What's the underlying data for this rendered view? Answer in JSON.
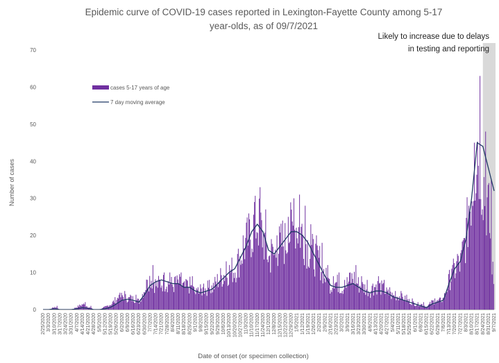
{
  "chart_data": {
    "type": "bar",
    "title_line1": "Epidemic curve of COVID-19 cases reported in Lexington-Fayette County among 5-17",
    "title_line2": "year-olds, as of 09/7/2021",
    "xlabel": "Date of onset (or specimen collection)",
    "ylabel": "Number of cases",
    "ylim": [
      0,
      70
    ],
    "yticks": [
      0,
      10,
      20,
      30,
      40,
      50,
      60,
      70
    ],
    "x_tick_labels": [
      "2/25/2020",
      "3/3/2020",
      "3/10/2020",
      "3/17/2020",
      "3/24/2020",
      "3/31/2020",
      "4/7/2020",
      "4/14/2020",
      "4/21/2020",
      "4/28/2020",
      "5/5/2020",
      "5/12/2020",
      "5/19/2020",
      "5/26/2020",
      "6/2/2020",
      "6/9/2020",
      "6/16/2020",
      "6/23/2020",
      "6/30/2020",
      "7/7/2020",
      "7/14/2020",
      "7/21/2020",
      "7/28/2020",
      "8/4/2020",
      "8/11/2020",
      "8/18/2020",
      "8/25/2020",
      "9/1/2020",
      "9/8/2020",
      "9/15/2020",
      "9/22/2020",
      "9/29/2020",
      "10/6/2020",
      "10/13/2020",
      "10/20/2020",
      "10/27/2020",
      "11/3/2020",
      "11/10/2020",
      "11/17/2020",
      "11/24/2020",
      "12/1/2020",
      "12/8/2020",
      "12/15/2020",
      "12/22/2020",
      "12/29/2020",
      "1/5/2021",
      "1/12/2021",
      "1/19/2021",
      "1/26/2021",
      "2/2/2021",
      "2/9/2021",
      "2/16/2021",
      "2/23/2021",
      "3/2/2021",
      "3/9/2021",
      "3/16/2021",
      "3/23/2021",
      "3/30/2021",
      "4/6/2021",
      "4/13/2021",
      "4/20/2021",
      "4/27/2021",
      "5/4/2021",
      "5/11/2021",
      "5/18/2021",
      "5/25/2021",
      "6/1/2021",
      "6/8/2021",
      "6/15/2021",
      "6/22/2021",
      "6/29/2021",
      "7/6/2021",
      "7/13/2021",
      "7/20/2021",
      "7/27/2021",
      "8/3/2021",
      "8/10/2021",
      "8/17/2021",
      "8/24/2021",
      "8/31/2021",
      "9/7/2021"
    ],
    "series": [
      {
        "name": "cases 5-17 years of age",
        "type": "bar",
        "color": "#7030a0",
        "weekly_peaks": [
          0,
          0,
          1,
          0,
          0,
          0,
          1,
          2,
          1,
          0,
          0,
          1,
          2,
          4,
          5,
          4,
          4,
          3,
          8,
          12,
          9,
          10,
          10,
          9,
          10,
          8,
          9,
          6,
          7,
          8,
          8,
          11,
          13,
          14,
          15,
          20,
          25,
          29,
          33,
          27,
          19,
          20,
          24,
          25,
          30,
          31,
          28,
          23,
          20,
          18,
          12,
          9,
          10,
          8,
          10,
          12,
          9,
          8,
          7,
          9,
          8,
          6,
          5,
          5,
          4,
          3,
          2,
          2,
          1,
          3,
          3,
          4,
          11,
          15,
          17,
          28,
          45,
          63,
          48,
          35,
          5
        ]
      },
      {
        "name": "7 day moving average",
        "type": "line",
        "color": "#1f3864",
        "weekly_values": [
          0,
          0,
          0.2,
          0,
          0,
          0,
          0.2,
          0.5,
          0.3,
          0,
          0,
          0.2,
          0.6,
          1.5,
          2.5,
          2.8,
          2.5,
          2,
          4,
          6.5,
          7.5,
          8,
          7.5,
          7,
          7,
          6,
          6,
          5,
          4.5,
          5,
          5.5,
          7,
          8.5,
          10,
          11,
          14,
          17,
          21,
          23,
          21,
          16,
          15,
          17,
          19,
          21,
          21,
          20,
          18,
          15,
          12,
          9,
          6.5,
          6,
          6,
          6.5,
          7,
          6,
          5,
          4.5,
          5,
          5,
          4.5,
          3.5,
          3,
          2.5,
          2,
          1.5,
          1,
          0.5,
          1.5,
          2,
          2.5,
          7,
          11,
          13,
          19,
          30,
          45,
          44,
          38,
          32
        ]
      }
    ],
    "legend": [
      "cases 5-17 years of age",
      "7 day moving average"
    ],
    "legend_position": "upper-left",
    "annotation": "Likely to increase due to delays in testing and reporting",
    "shaded_region": {
      "from": "8/24/2021",
      "to": "9/7/2021",
      "color": "#d9d9d9"
    },
    "grid": false
  }
}
